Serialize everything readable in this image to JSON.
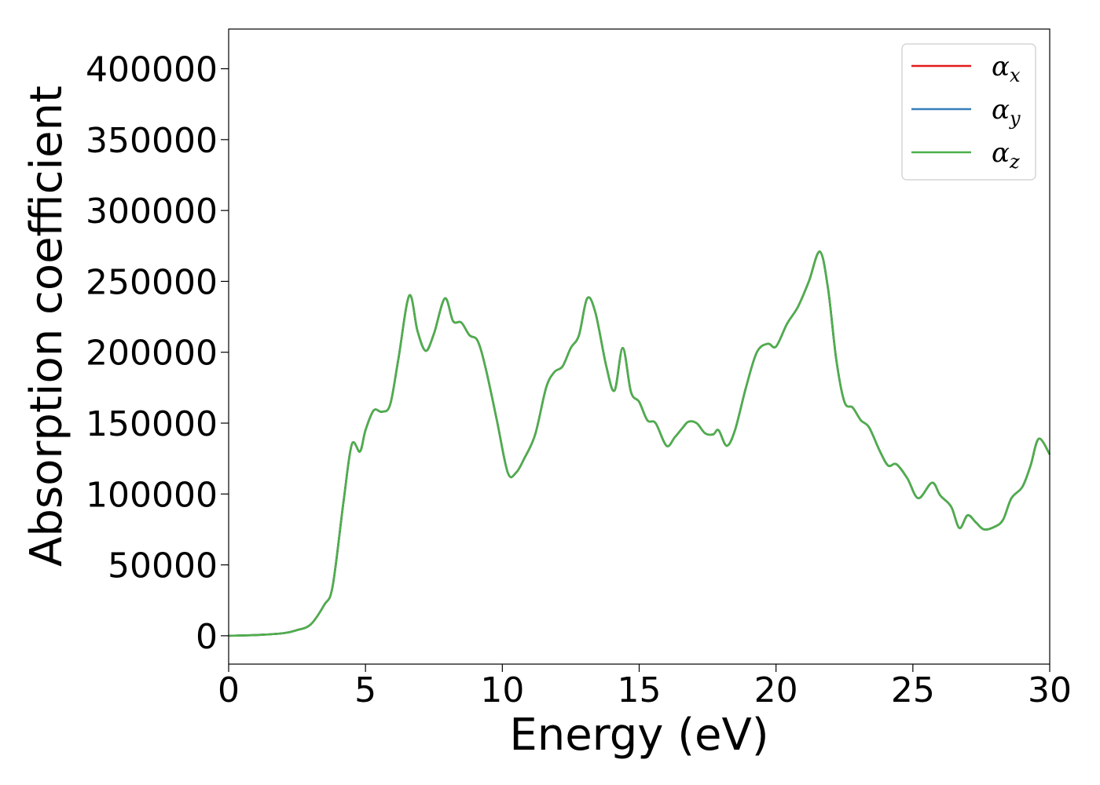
{
  "chart_data": {
    "type": "line",
    "title": "",
    "xlabel": "Energy (eV)",
    "ylabel": "Absorption coefficient",
    "xlim": [
      0,
      30
    ],
    "ylim": [
      -20000,
      428000
    ],
    "xticks": [
      0,
      5,
      10,
      15,
      20,
      25,
      30
    ],
    "yticks": [
      0,
      50000,
      100000,
      150000,
      200000,
      250000,
      300000,
      350000,
      400000
    ],
    "grid": false,
    "legend_position": "top-right",
    "x": [
      0,
      1,
      2,
      2.5,
      3,
      3.5,
      3.8,
      4.2,
      4.5,
      4.8,
      5.0,
      5.3,
      5.6,
      5.9,
      6.2,
      6.6,
      6.9,
      7.2,
      7.5,
      7.9,
      8.2,
      8.5,
      8.8,
      9.1,
      9.4,
      9.8,
      10.2,
      10.5,
      10.8,
      11.2,
      11.6,
      11.9,
      12.2,
      12.5,
      12.8,
      13.1,
      13.4,
      13.8,
      14.1,
      14.4,
      14.7,
      15.0,
      15.3,
      15.6,
      16.0,
      16.3,
      16.6,
      16.8,
      17.1,
      17.4,
      17.7,
      17.9,
      18.2,
      18.5,
      18.9,
      19.3,
      19.7,
      20.0,
      20.4,
      20.8,
      21.2,
      21.6,
      21.9,
      22.2,
      22.5,
      22.8,
      23.1,
      23.4,
      23.8,
      24.1,
      24.4,
      24.8,
      25.2,
      25.7,
      26.0,
      26.4,
      26.7,
      27.0,
      27.3,
      27.6,
      28.0,
      28.3,
      28.6,
      29.0,
      29.3,
      29.6,
      30.0
    ],
    "series": [
      {
        "name": "α_x",
        "color": "#e41a1c",
        "y": [
          0,
          500,
          1800,
          4000,
          8000,
          22000,
          35000,
          95000,
          135000,
          130000,
          145000,
          159000,
          158000,
          163000,
          195000,
          240000,
          215000,
          201000,
          213000,
          238000,
          222000,
          221000,
          212000,
          208000,
          188000,
          152000,
          115000,
          115000,
          125000,
          142000,
          175000,
          186000,
          190000,
          203000,
          212000,
          238000,
          228000,
          190000,
          173000,
          203000,
          172000,
          165000,
          152000,
          150000,
          134000,
          140000,
          147000,
          151000,
          150000,
          143000,
          142000,
          145000,
          134000,
          145000,
          175000,
          200000,
          206000,
          204000,
          220000,
          232000,
          250000,
          271000,
          245000,
          195000,
          165000,
          161000,
          152000,
          147000,
          130000,
          120000,
          121000,
          111000,
          97000,
          108000,
          99000,
          91000,
          76000,
          85000,
          80000,
          75000,
          77000,
          82000,
          97000,
          105000,
          120000,
          139000,
          128000
        ]
      },
      {
        "name": "α_y",
        "color": "#377eb8",
        "y": [
          0,
          500,
          1800,
          4000,
          8000,
          22000,
          35000,
          95000,
          135000,
          130000,
          145000,
          159000,
          158000,
          163000,
          195000,
          240000,
          215000,
          201000,
          213000,
          238000,
          222000,
          221000,
          212000,
          208000,
          188000,
          152000,
          115000,
          115000,
          125000,
          142000,
          175000,
          186000,
          190000,
          203000,
          212000,
          238000,
          228000,
          190000,
          173000,
          203000,
          172000,
          165000,
          152000,
          150000,
          134000,
          140000,
          147000,
          151000,
          150000,
          143000,
          142000,
          145000,
          134000,
          145000,
          175000,
          200000,
          206000,
          204000,
          220000,
          232000,
          250000,
          271000,
          245000,
          195000,
          165000,
          161000,
          152000,
          147000,
          130000,
          120000,
          121000,
          111000,
          97000,
          108000,
          99000,
          91000,
          76000,
          85000,
          80000,
          75000,
          77000,
          82000,
          97000,
          105000,
          120000,
          139000,
          128000
        ]
      },
      {
        "name": "α_z",
        "color": "#4daf4a",
        "y": [
          0,
          500,
          1800,
          4000,
          8000,
          22000,
          35000,
          95000,
          135000,
          130000,
          145000,
          159000,
          158000,
          163000,
          195000,
          240000,
          215000,
          201000,
          213000,
          238000,
          222000,
          221000,
          212000,
          208000,
          188000,
          152000,
          115000,
          115000,
          125000,
          142000,
          175000,
          186000,
          190000,
          203000,
          212000,
          238000,
          228000,
          190000,
          173000,
          203000,
          172000,
          165000,
          152000,
          150000,
          134000,
          140000,
          147000,
          151000,
          150000,
          143000,
          142000,
          145000,
          134000,
          145000,
          175000,
          200000,
          206000,
          204000,
          220000,
          232000,
          250000,
          271000,
          245000,
          195000,
          165000,
          161000,
          152000,
          147000,
          130000,
          120000,
          121000,
          111000,
          97000,
          108000,
          99000,
          91000,
          76000,
          85000,
          80000,
          75000,
          77000,
          82000,
          97000,
          105000,
          120000,
          139000,
          128000
        ]
      }
    ]
  },
  "legend": [
    {
      "symbol": "α",
      "subscript": "x",
      "color": "#e41a1c"
    },
    {
      "symbol": "α",
      "subscript": "y",
      "color": "#377eb8"
    },
    {
      "symbol": "α",
      "subscript": "z",
      "color": "#4daf4a"
    }
  ]
}
